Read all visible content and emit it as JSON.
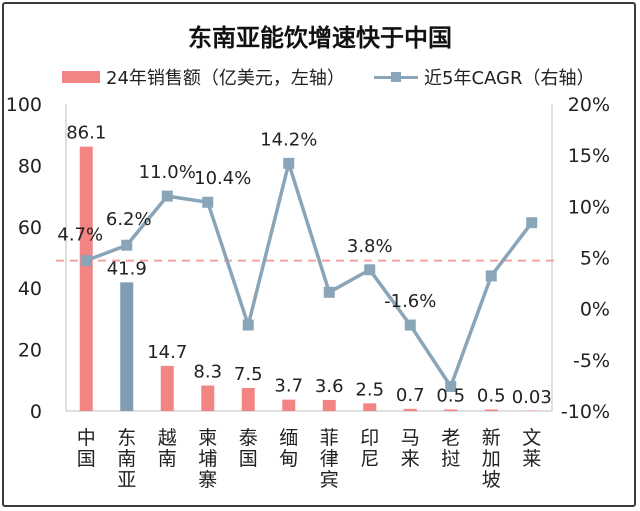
{
  "title": "东南亚能饮增速快于中国",
  "legend": {
    "bar_label": "24年销售额（亿美元，左轴）",
    "line_label": "近5年CAGR（右轴）"
  },
  "colors": {
    "bar_default": "#f28483",
    "bar_highlight": "#7f9db5",
    "line": "#8aa4b8",
    "reference_line": "#f2a3a2",
    "axis_text": "#222222"
  },
  "chart_data": {
    "type": "bar+line",
    "categories": [
      "中\n国",
      "东\n南\n亚",
      "越\n南",
      "柬\n埔\n寨",
      "泰\n国",
      "缅\n甸",
      "菲\n律\n宾",
      "印\n尼",
      "马\n来",
      "老\n挝",
      "新\n加\n坡",
      "文\n莱"
    ],
    "series": [
      {
        "name": "24年销售额（亿美元，左轴）",
        "type": "bar",
        "axis": "left",
        "values": [
          86.1,
          41.9,
          14.7,
          8.3,
          7.5,
          3.7,
          3.6,
          2.5,
          0.7,
          0.5,
          0.5,
          0.03
        ],
        "labels": [
          "86.1",
          "41.9",
          "14.7",
          "8.3",
          "7.5",
          "3.7",
          "3.6",
          "2.5",
          "0.7",
          "0.5",
          "0.5",
          "0.03"
        ],
        "highlight_index": 1
      },
      {
        "name": "近5年CAGR（右轴）",
        "type": "line",
        "axis": "right",
        "values": [
          4.7,
          6.2,
          11.0,
          10.4,
          -1.6,
          14.2,
          1.6,
          3.8,
          -1.6,
          -7.6,
          3.2,
          8.4
        ],
        "labels": [
          "4.7%",
          "6.2%",
          "11.0%",
          "10.4%",
          "",
          "14.2%",
          "",
          "3.8%",
          "-1.6%",
          "",
          "",
          ""
        ]
      }
    ],
    "left_axis": {
      "ylim": [
        0,
        100
      ],
      "ticks": [
        "0",
        "20",
        "40",
        "60",
        "80",
        "100"
      ]
    },
    "right_axis": {
      "ylim": [
        -10,
        20
      ],
      "ticks": [
        "-10%",
        "-5%",
        "0%",
        "5%",
        "10%",
        "15%",
        "20%"
      ]
    },
    "reference_line_right_value": 4.7,
    "grid": false,
    "legend_position": "top"
  }
}
